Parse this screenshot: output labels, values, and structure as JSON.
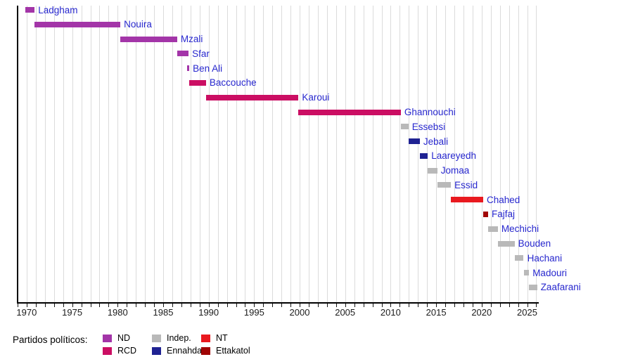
{
  "chart_data": {
    "type": "gantt",
    "title": "",
    "xlabel": "",
    "ylabel": "",
    "grid": true,
    "xlim": [
      1969,
      2026.2
    ],
    "x_tick_interval_minor": 1,
    "x_tick_labels": [
      1970,
      1975,
      1980,
      1985,
      1990,
      1995,
      2000,
      2005,
      2010,
      2015,
      2020,
      2025
    ],
    "label_color": "#2727ce",
    "parties": {
      "ND": "#a335a8",
      "RCD": "#cb0e63",
      "Indep.": "#b9b9b9",
      "Ennahda": "#1f2292",
      "NT": "#e9191f",
      "Ettakatol": "#a00505"
    },
    "bars": [
      {
        "name": "Ladgham",
        "start": 1969.83,
        "end": 1970.87,
        "party": "ND"
      },
      {
        "name": "Nouira",
        "start": 1970.87,
        "end": 1980.29,
        "party": "ND"
      },
      {
        "name": "Mzali",
        "start": 1980.29,
        "end": 1986.54,
        "party": "ND"
      },
      {
        "name": "Sfar",
        "start": 1986.54,
        "end": 1987.79,
        "party": "ND"
      },
      {
        "name": "Ben Ali",
        "start": 1987.79,
        "end": 1987.87,
        "party": "ND"
      },
      {
        "name": "Baccouche",
        "start": 1987.87,
        "end": 1989.71,
        "party": "RCD"
      },
      {
        "name": "Karoui",
        "start": 1989.71,
        "end": 1999.87,
        "party": "RCD"
      },
      {
        "name": "Ghannouchi",
        "start": 1999.87,
        "end": 2011.12,
        "party": "RCD"
      },
      {
        "name": "Essebsi",
        "start": 2011.12,
        "end": 2011.96,
        "party": "Indep."
      },
      {
        "name": "Jebali",
        "start": 2011.96,
        "end": 2013.21,
        "party": "Ennahda"
      },
      {
        "name": "Laareyedh",
        "start": 2013.21,
        "end": 2014.08,
        "party": "Ennahda"
      },
      {
        "name": "Jomaa",
        "start": 2014.08,
        "end": 2015.12,
        "party": "Indep."
      },
      {
        "name": "Essid",
        "start": 2015.12,
        "end": 2016.62,
        "party": "Indep."
      },
      {
        "name": "Chahed",
        "start": 2016.62,
        "end": 2020.17,
        "party": "NT"
      },
      {
        "name": "Fajfaj",
        "start": 2020.17,
        "end": 2020.71,
        "party": "Ettakatol"
      },
      {
        "name": "Mechichi",
        "start": 2020.71,
        "end": 2021.79,
        "party": "Indep."
      },
      {
        "name": "Bouden",
        "start": 2021.79,
        "end": 2023.62,
        "party": "Indep."
      },
      {
        "name": "Hachani",
        "start": 2023.62,
        "end": 2024.62,
        "party": "Indep."
      },
      {
        "name": "Madouri",
        "start": 2024.62,
        "end": 2025.21,
        "party": "Indep."
      },
      {
        "name": "Zaafarani",
        "start": 2025.21,
        "end": 2026.1,
        "party": "Indep."
      }
    ],
    "legend_position": "bottom-left"
  },
  "legend": {
    "title": "Partidos políticos:",
    "items": [
      {
        "label": "ND",
        "party": "ND"
      },
      {
        "label": "RCD",
        "party": "RCD"
      },
      {
        "label": "Indep.",
        "party": "Indep."
      },
      {
        "label": "Ennahda",
        "party": "Ennahda"
      },
      {
        "label": "NT",
        "party": "NT"
      },
      {
        "label": "Ettakatol",
        "party": "Ettakatol"
      }
    ]
  }
}
